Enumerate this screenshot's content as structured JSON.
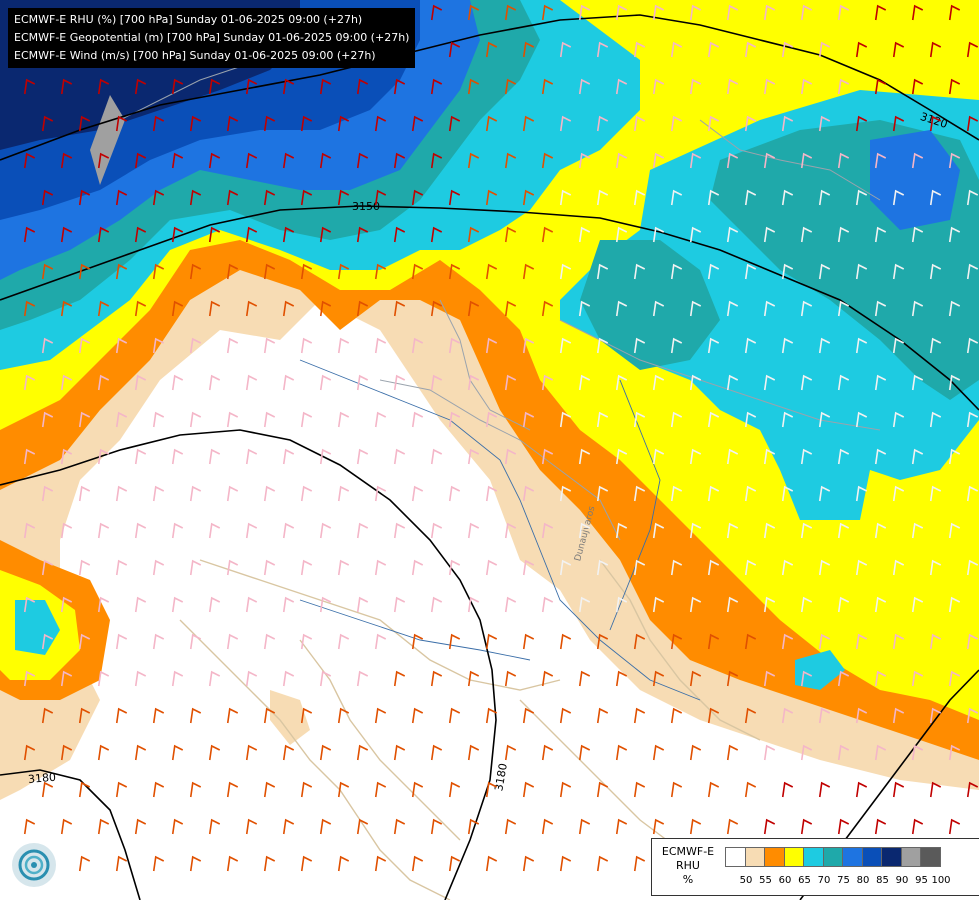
{
  "title_lines": [
    "ECMWF-E RHU (%) [700 hPa] Sunday 01-06-2025 09:00 (+27h)",
    "ECMWF-E Geopotential (m) [700 hPa] Sunday 01-06-2025 09:00 (+27h)",
    "ECMWF-E Wind (m/s) [700 hPa] Sunday 01-06-2025 09:00 (+27h)"
  ],
  "legend": {
    "title_lines": [
      "ECMWF-E",
      "RHU",
      "%"
    ],
    "colors": [
      "#ffffff",
      "#f7dcb4",
      "#ff8c00",
      "#ffff00",
      "#1ecbe1",
      "#1fa9aa",
      "#1e74e1",
      "#0a4fb8",
      "#0a2870",
      "#a0a0a0",
      "#5a5a5a"
    ],
    "tick_labels": [
      "50",
      "55",
      "60",
      "65",
      "70",
      "75",
      "80",
      "85",
      "90",
      "95",
      "100"
    ]
  },
  "contour_labels": [
    "3120",
    "3150",
    "3180",
    "3180"
  ],
  "place_labels": [
    "Dunaujvaros"
  ],
  "logo_icon": "ecmwf-logo-icon"
}
